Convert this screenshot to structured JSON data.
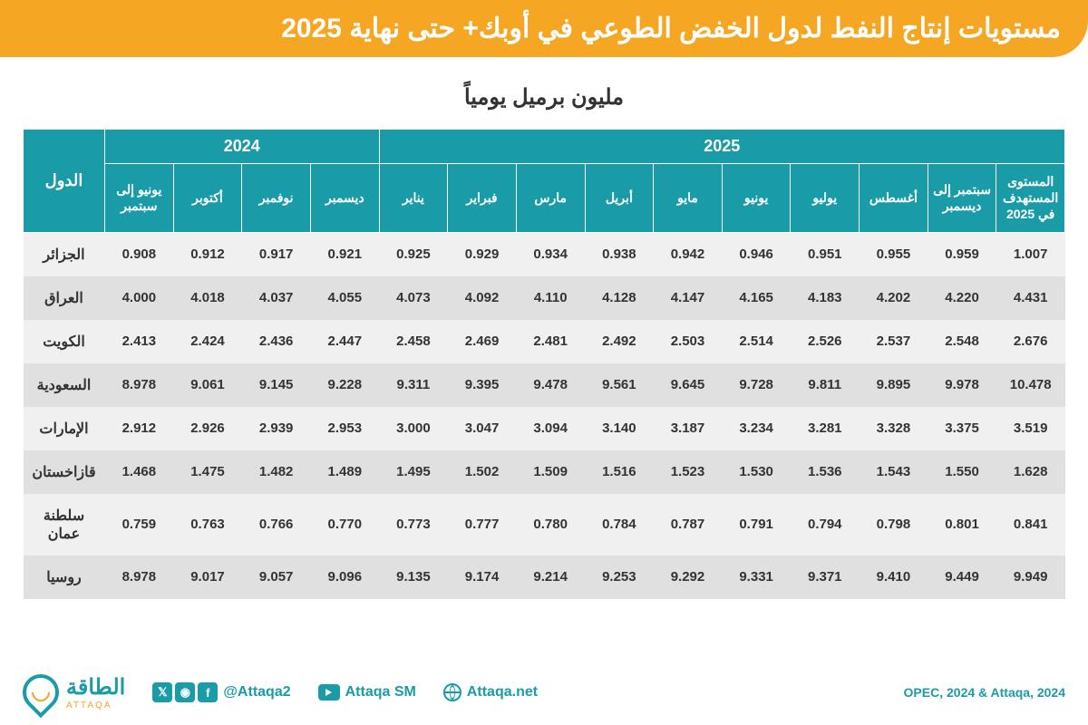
{
  "colors": {
    "header_bg": "#f5a623",
    "header_text": "#ffffff",
    "th_bg": "#1a9ba8",
    "th_text": "#ffffff",
    "row_even": "#f0f0f0",
    "row_odd": "#e0e0e0",
    "cell_text": "#333333",
    "brand": "#1a9ba8",
    "accent": "#f5a623",
    "background": "#ffffff"
  },
  "title": "مستويات إنتاج النفط لدول الخفض الطوعي في أوبك+ حتى نهاية 2025",
  "subtitle": "مليون برميل يومياً",
  "year_headers": {
    "y2024": "2024",
    "y2025": "2025"
  },
  "columns": {
    "country": "الدول",
    "c01": "يونيو إلى سبتمبر",
    "c02": "أكتوبر",
    "c03": "نوفمبر",
    "c04": "ديسمبر",
    "c05": "يناير",
    "c06": "فبراير",
    "c07": "مارس",
    "c08": "أبريل",
    "c09": "مايو",
    "c10": "يونيو",
    "c11": "يوليو",
    "c12": "أغسطس",
    "c13": "سبتمبر إلى ديسمبر",
    "c14": "المستوى المستهدف في 2025"
  },
  "rows": [
    {
      "country": "الجزائر",
      "v": [
        "0.908",
        "0.912",
        "0.917",
        "0.921",
        "0.925",
        "0.929",
        "0.934",
        "0.938",
        "0.942",
        "0.946",
        "0.951",
        "0.955",
        "0.959",
        "1.007"
      ]
    },
    {
      "country": "العراق",
      "v": [
        "4.000",
        "4.018",
        "4.037",
        "4.055",
        "4.073",
        "4.092",
        "4.110",
        "4.128",
        "4.147",
        "4.165",
        "4.183",
        "4.202",
        "4.220",
        "4.431"
      ]
    },
    {
      "country": "الكويت",
      "v": [
        "2.413",
        "2.424",
        "2.436",
        "2.447",
        "2.458",
        "2.469",
        "2.481",
        "2.492",
        "2.503",
        "2.514",
        "2.526",
        "2.537",
        "2.548",
        "2.676"
      ]
    },
    {
      "country": "السعودية",
      "v": [
        "8.978",
        "9.061",
        "9.145",
        "9.228",
        "9.311",
        "9.395",
        "9.478",
        "9.561",
        "9.645",
        "9.728",
        "9.811",
        "9.895",
        "9.978",
        "10.478"
      ]
    },
    {
      "country": "الإمارات",
      "v": [
        "2.912",
        "2.926",
        "2.939",
        "2.953",
        "3.000",
        "3.047",
        "3.094",
        "3.140",
        "3.187",
        "3.234",
        "3.281",
        "3.328",
        "3.375",
        "3.519"
      ]
    },
    {
      "country": "قازاخستان",
      "v": [
        "1.468",
        "1.475",
        "1.482",
        "1.489",
        "1.495",
        "1.502",
        "1.509",
        "1.516",
        "1.523",
        "1.530",
        "1.536",
        "1.543",
        "1.550",
        "1.628"
      ]
    },
    {
      "country": "سلطنة عمان",
      "v": [
        "0.759",
        "0.763",
        "0.766",
        "0.770",
        "0.773",
        "0.777",
        "0.780",
        "0.784",
        "0.787",
        "0.791",
        "0.794",
        "0.798",
        "0.801",
        "0.841"
      ]
    },
    {
      "country": "روسيا",
      "v": [
        "8.978",
        "9.017",
        "9.057",
        "9.096",
        "9.135",
        "9.174",
        "9.214",
        "9.253",
        "9.292",
        "9.331",
        "9.371",
        "9.410",
        "9.449",
        "9.949"
      ]
    }
  ],
  "footer": {
    "brand_ar": "الطاقة",
    "brand_en": "ATTAQA",
    "handle": "@Attaqa2",
    "youtube": "Attaqa SM",
    "website": "Attaqa.net",
    "source": "OPEC, 2024 & Attaqa, 2024"
  }
}
